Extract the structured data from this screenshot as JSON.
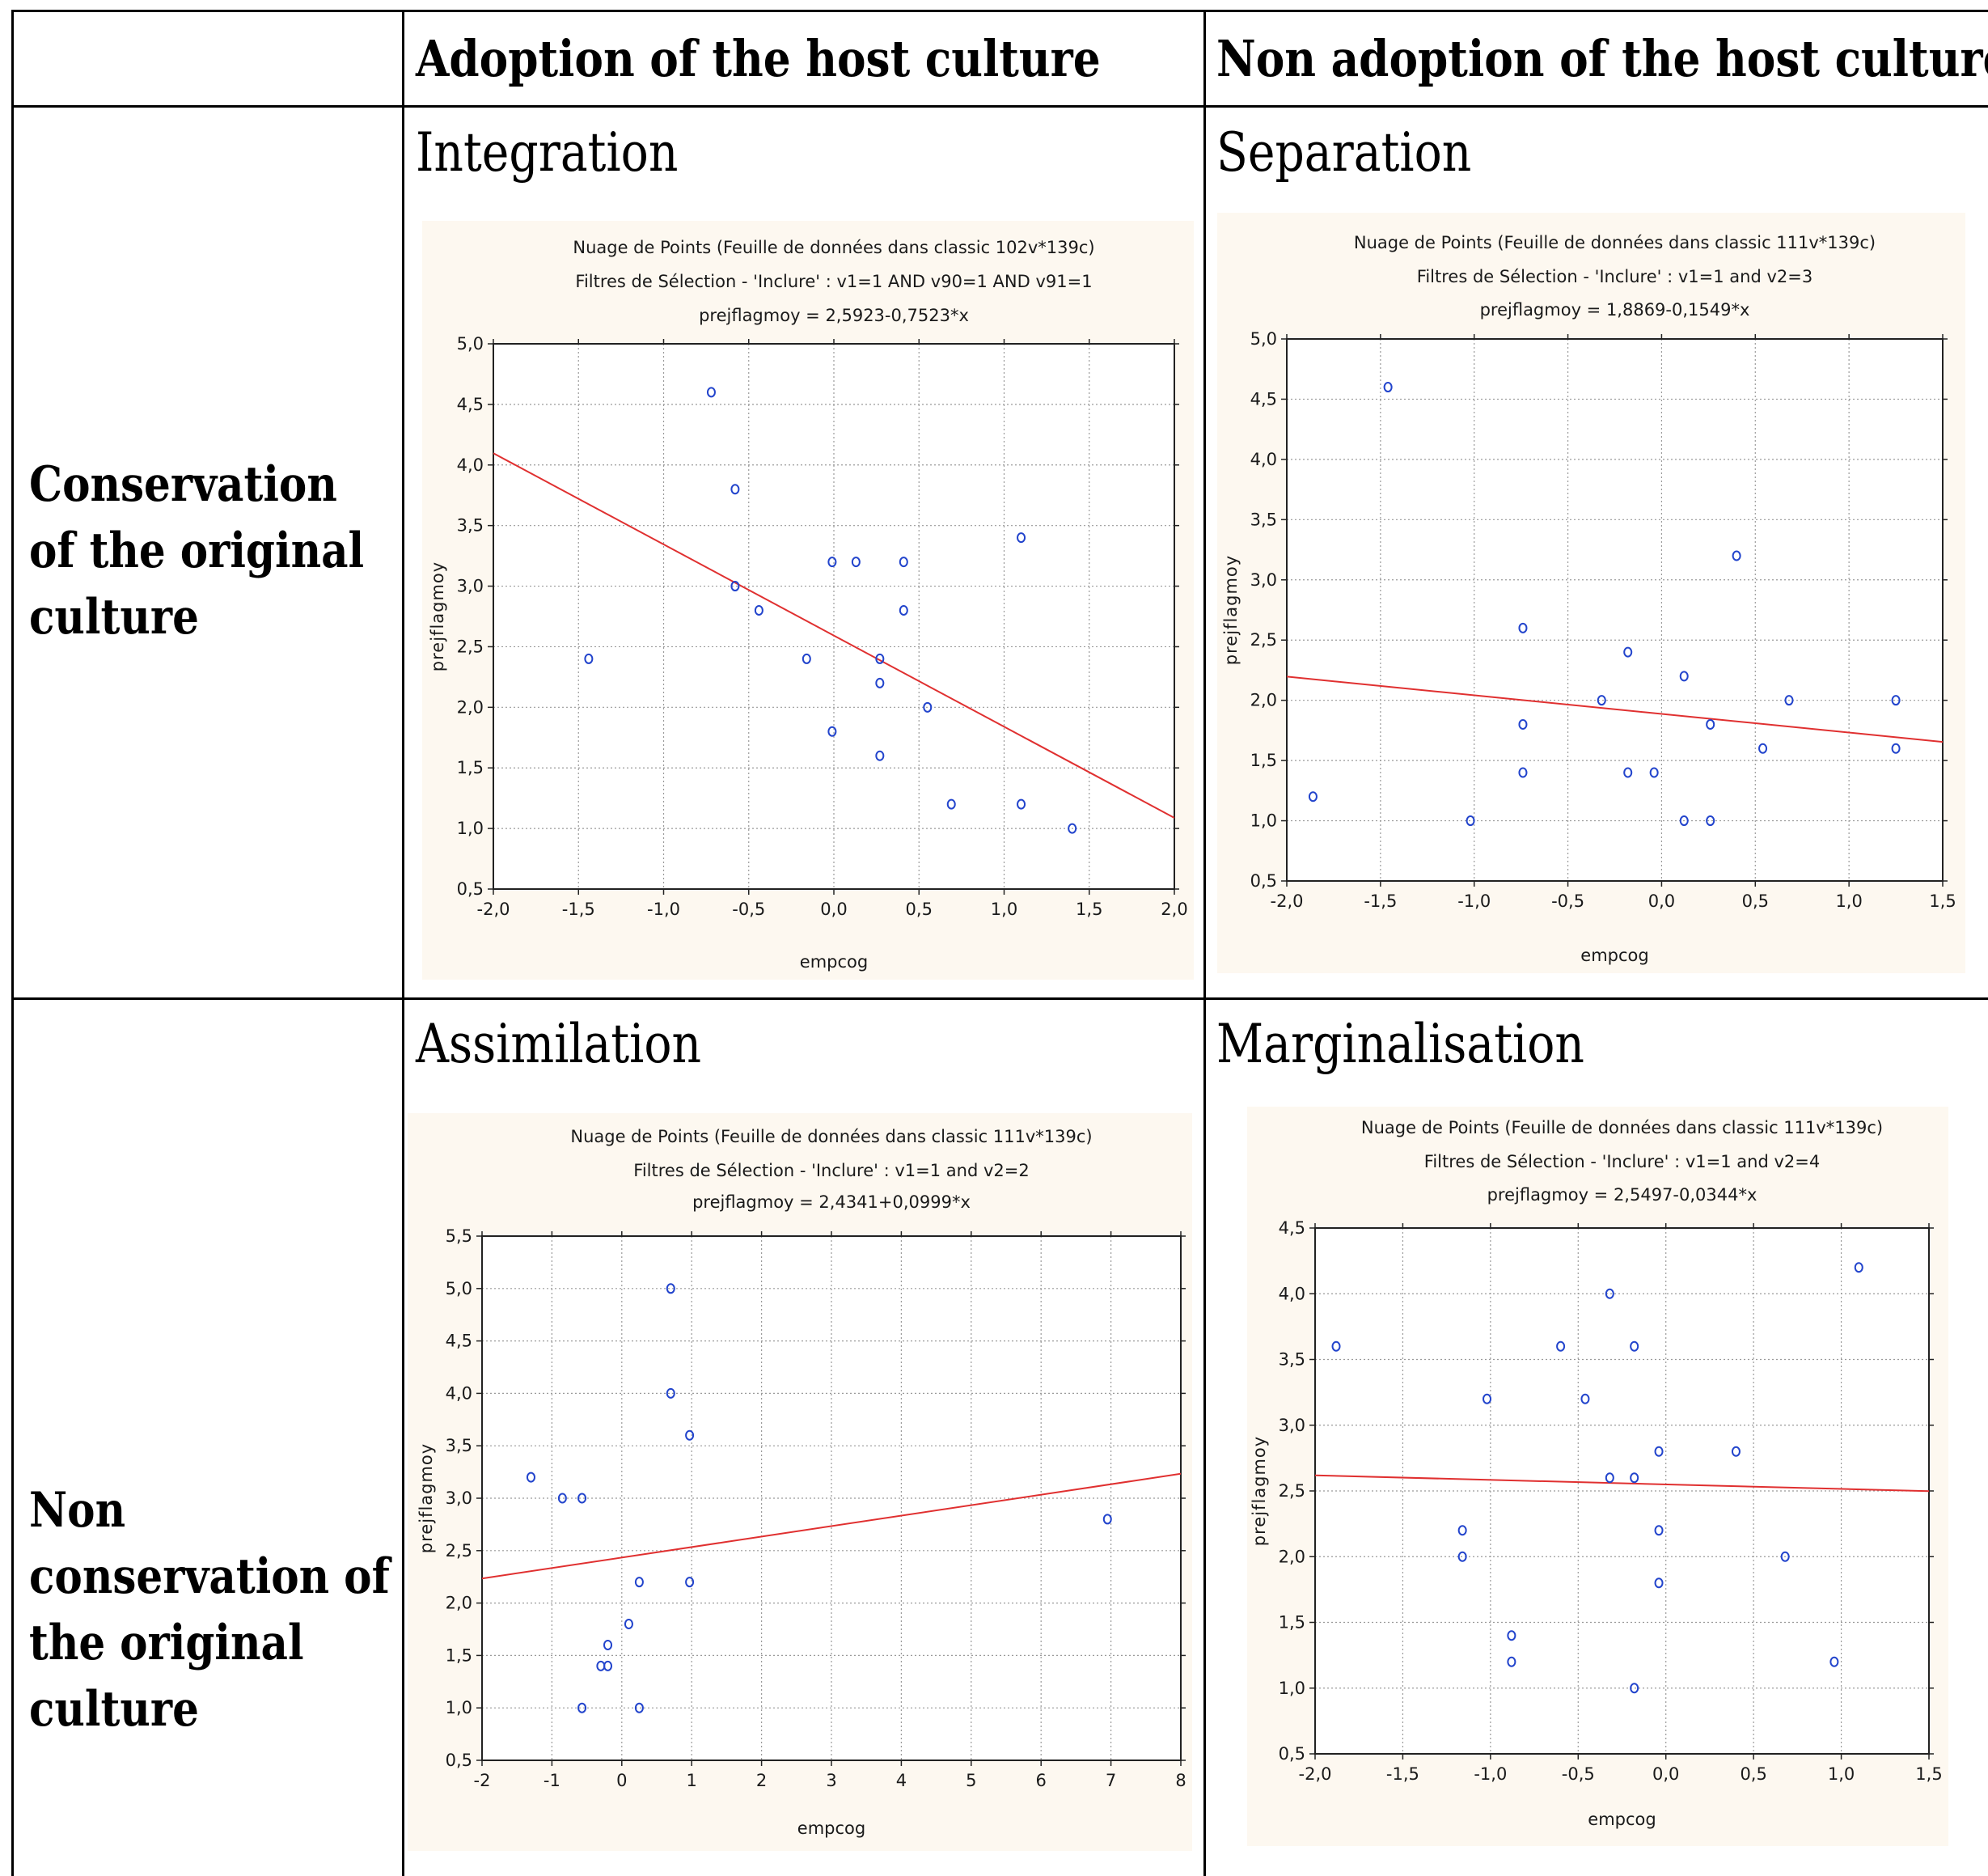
{
  "table": {
    "col_headers": [
      "",
      "Adoption of the host culture",
      "Non adoption of the host culture"
    ],
    "row_headers": [
      "Conservation of the original culture",
      "Non conservation of the original culture"
    ],
    "cell_titles": [
      "Integration",
      "Separation",
      "Assimilation",
      "Marginalisation"
    ]
  },
  "chart_data": [
    {
      "type": "scatter",
      "cell": "Integration",
      "title_lines": [
        "Nuage de Points (Feuille de données dans classic 102v*139c)",
        "Filtres de Sélection - 'Inclure' : v1=1 AND v90=1 AND v91=1",
        "prejflagmoy = 2,5923-0,7523*x"
      ],
      "xlabel": "empcog",
      "ylabel": "prejflagmoy",
      "xlim": [
        -2.0,
        2.0
      ],
      "ylim": [
        0.5,
        5.0
      ],
      "xticks": [
        "-2,0",
        "-1,5",
        "-1,0",
        "-0,5",
        "0,0",
        "0,5",
        "1,0",
        "1,5",
        "2,0"
      ],
      "yticks": [
        "0,5",
        "1,0",
        "1,5",
        "2,0",
        "2,5",
        "3,0",
        "3,5",
        "4,0",
        "4,5",
        "5,0"
      ],
      "grid": true,
      "fit": {
        "intercept": 2.5923,
        "slope": -0.7523
      },
      "series_color": "#2244cc",
      "fit_color": "#e03030",
      "points": [
        [
          -0.72,
          4.6
        ],
        [
          -0.58,
          3.8
        ],
        [
          -0.58,
          3.0
        ],
        [
          -0.44,
          2.8
        ],
        [
          -1.44,
          2.4
        ],
        [
          -0.16,
          2.4
        ],
        [
          -0.01,
          3.2
        ],
        [
          0.13,
          3.2
        ],
        [
          0.41,
          3.2
        ],
        [
          0.41,
          2.8
        ],
        [
          0.27,
          2.4
        ],
        [
          0.27,
          2.2
        ],
        [
          -0.01,
          1.8
        ],
        [
          0.27,
          1.6
        ],
        [
          0.55,
          2.0
        ],
        [
          0.69,
          1.2
        ],
        [
          1.1,
          3.4
        ],
        [
          1.1,
          1.2
        ],
        [
          1.4,
          1.0
        ]
      ]
    },
    {
      "type": "scatter",
      "cell": "Separation",
      "title_lines": [
        "Nuage de Points (Feuille de données dans classic 111v*139c)",
        "Filtres de Sélection - 'Inclure' : v1=1 and v2=3",
        "prejflagmoy = 1,8869-0,1549*x"
      ],
      "xlabel": "empcog",
      "ylabel": "prejflagmoy",
      "xlim": [
        -2.0,
        1.5
      ],
      "ylim": [
        0.5,
        5.0
      ],
      "xticks": [
        "-2,0",
        "-1,5",
        "-1,0",
        "-0,5",
        "0,0",
        "0,5",
        "1,0",
        "1,5"
      ],
      "yticks": [
        "0,5",
        "1,0",
        "1,5",
        "2,0",
        "2,5",
        "3,0",
        "3,5",
        "4,0",
        "4,5",
        "5,0"
      ],
      "grid": true,
      "fit": {
        "intercept": 1.8869,
        "slope": -0.1549
      },
      "series_color": "#2244cc",
      "fit_color": "#e03030",
      "points": [
        [
          -1.46,
          4.6
        ],
        [
          -1.86,
          1.2
        ],
        [
          -1.02,
          1.0
        ],
        [
          -0.74,
          2.6
        ],
        [
          -0.74,
          1.8
        ],
        [
          -0.74,
          1.4
        ],
        [
          -0.32,
          2.0
        ],
        [
          -0.18,
          2.4
        ],
        [
          -0.18,
          1.4
        ],
        [
          -0.04,
          1.4
        ],
        [
          0.12,
          2.2
        ],
        [
          0.12,
          1.0
        ],
        [
          0.26,
          1.8
        ],
        [
          0.26,
          1.0
        ],
        [
          0.4,
          3.2
        ],
        [
          0.54,
          1.6
        ],
        [
          0.68,
          2.0
        ],
        [
          1.25,
          2.0
        ],
        [
          1.25,
          1.6
        ]
      ]
    },
    {
      "type": "scatter",
      "cell": "Assimilation",
      "title_lines": [
        "Nuage de Points (Feuille de données dans classic 111v*139c)",
        "Filtres de Sélection - 'Inclure' : v1=1 and v2=2",
        "prejflagmoy = 2,4341+0,0999*x"
      ],
      "xlabel": "empcog",
      "ylabel": "prejflagmoy",
      "xlim": [
        -2,
        8
      ],
      "ylim": [
        0.5,
        5.5
      ],
      "xticks": [
        "-2",
        "-1",
        "0",
        "1",
        "2",
        "3",
        "4",
        "5",
        "6",
        "7",
        "8"
      ],
      "yticks": [
        "0,5",
        "1,0",
        "1,5",
        "2,0",
        "2,5",
        "3,0",
        "3,5",
        "4,0",
        "4,5",
        "5,0",
        "5,5"
      ],
      "grid": true,
      "fit": {
        "intercept": 2.4341,
        "slope": 0.0999
      },
      "series_color": "#2244cc",
      "fit_color": "#e03030",
      "points": [
        [
          -1.3,
          3.2
        ],
        [
          -0.85,
          3.0
        ],
        [
          -0.57,
          3.0
        ],
        [
          -0.57,
          1.0
        ],
        [
          -0.3,
          1.4
        ],
        [
          -0.2,
          1.4
        ],
        [
          -0.2,
          1.6
        ],
        [
          0.1,
          1.8
        ],
        [
          0.25,
          2.2
        ],
        [
          0.25,
          1.0
        ],
        [
          0.7,
          5.0
        ],
        [
          0.7,
          4.0
        ],
        [
          0.97,
          3.6
        ],
        [
          0.97,
          2.2
        ],
        [
          6.95,
          2.8
        ]
      ]
    },
    {
      "type": "scatter",
      "cell": "Marginalisation",
      "title_lines": [
        "Nuage de Points (Feuille de données dans classic 111v*139c)",
        "Filtres de Sélection - 'Inclure' : v1=1 and v2=4",
        "prejflagmoy = 2,5497-0,0344*x"
      ],
      "xlabel": "empcog",
      "ylabel": "prejflagmoy",
      "xlim": [
        -2.0,
        1.5
      ],
      "ylim": [
        0.5,
        4.5
      ],
      "xticks": [
        "-2,0",
        "-1,5",
        "-1,0",
        "-0,5",
        "0,0",
        "0,5",
        "1,0",
        "1,5"
      ],
      "yticks": [
        "0,5",
        "1,0",
        "1,5",
        "2,0",
        "2,5",
        "3,0",
        "3,5",
        "4,0",
        "4,5"
      ],
      "grid": true,
      "fit": {
        "intercept": 2.5497,
        "slope": -0.0344
      },
      "series_color": "#2244cc",
      "fit_color": "#e03030",
      "points": [
        [
          -1.88,
          3.6
        ],
        [
          -1.16,
          2.2
        ],
        [
          -1.16,
          2.0
        ],
        [
          -1.02,
          3.2
        ],
        [
          -0.88,
          1.4
        ],
        [
          -0.88,
          1.2
        ],
        [
          -0.6,
          3.6
        ],
        [
          -0.46,
          3.2
        ],
        [
          -0.32,
          4.0
        ],
        [
          -0.32,
          2.6
        ],
        [
          -0.18,
          3.6
        ],
        [
          -0.18,
          2.6
        ],
        [
          -0.18,
          1.0
        ],
        [
          -0.04,
          2.8
        ],
        [
          -0.04,
          2.2
        ],
        [
          -0.04,
          1.8
        ],
        [
          0.4,
          2.8
        ],
        [
          0.68,
          2.0
        ],
        [
          0.96,
          1.2
        ],
        [
          1.1,
          4.2
        ]
      ]
    }
  ]
}
